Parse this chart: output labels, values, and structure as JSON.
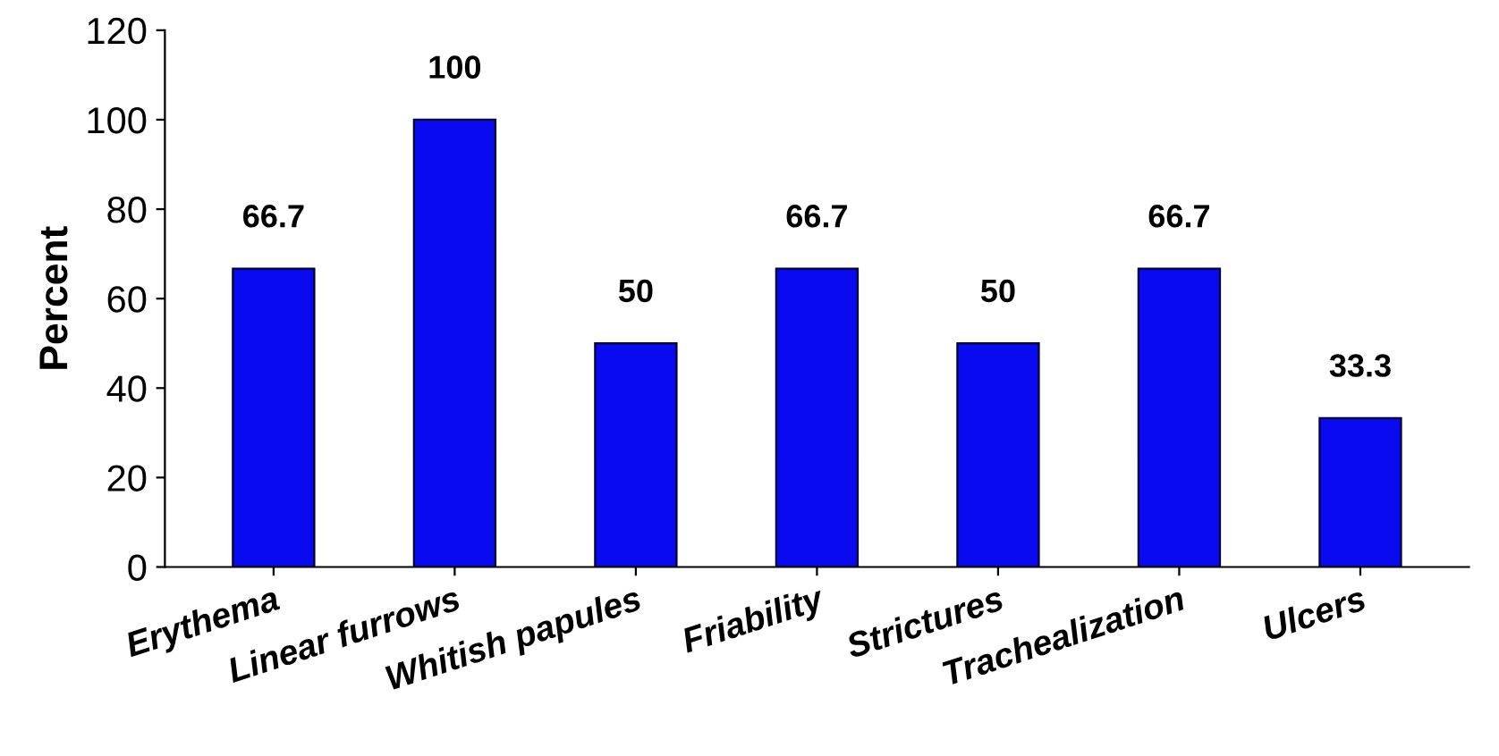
{
  "chart_data": {
    "type": "bar",
    "ylabel": "Percent",
    "categories": [
      "Erythema",
      "Linear furrows",
      "Whitish papules",
      "Friability",
      "Strictures",
      "Trachealization",
      "Ulcers"
    ],
    "values": [
      66.7,
      100,
      50,
      66.7,
      50,
      66.7,
      33.3
    ],
    "color": "#0a0af0",
    "ylim": [
      0,
      120
    ],
    "yticks": [
      0,
      20,
      40,
      60,
      80,
      100,
      120
    ],
    "grid": false,
    "data_labels": true
  }
}
